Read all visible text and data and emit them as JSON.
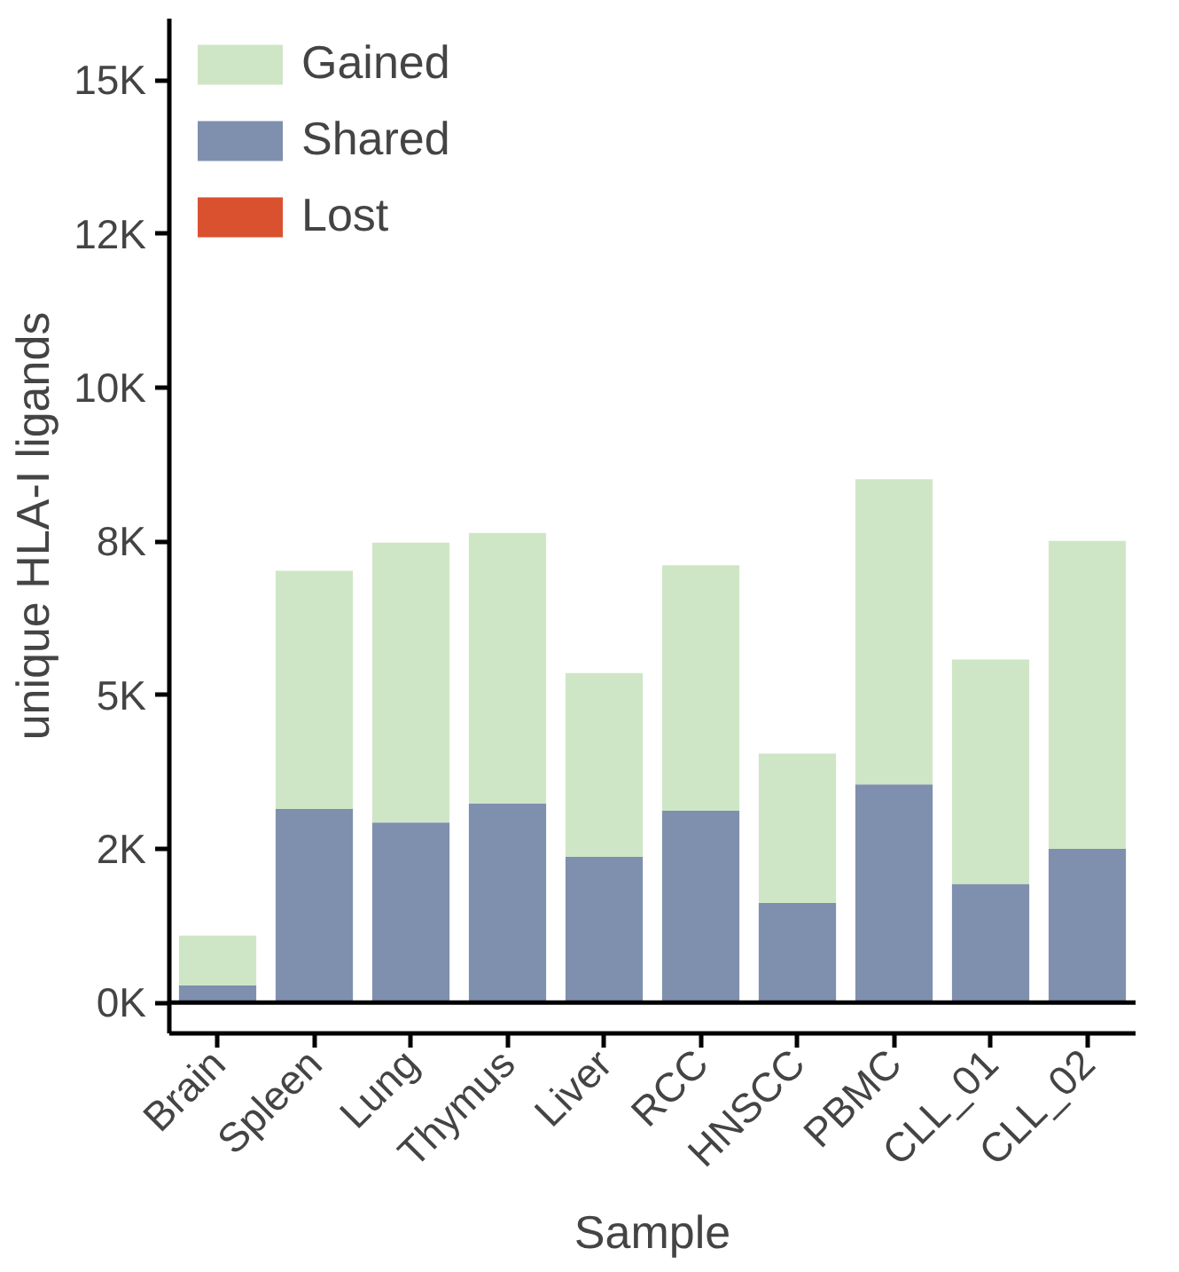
{
  "chart_data": {
    "type": "bar",
    "stacked": true,
    "xlabel": "Sample",
    "ylabel": "unique HLA-I ligands",
    "categories": [
      "Brain",
      "Spleen",
      "Lung",
      "Thymus",
      "Liver",
      "RCC",
      "HNSCC",
      "PBMC",
      "CLL_01",
      "CLL_02"
    ],
    "series": [
      {
        "name": "Lost",
        "color": "#d9512f",
        "values": [
          0,
          0,
          0,
          0,
          0,
          0,
          0,
          0,
          0,
          0
        ]
      },
      {
        "name": "Shared",
        "color": "#7f8fae",
        "values": [
          280,
          3150,
          2930,
          3240,
          2370,
          3120,
          1620,
          3550,
          1930,
          2500
        ]
      },
      {
        "name": "Gained",
        "color": "#cfe6c6",
        "values": [
          810,
          3870,
          4550,
          4400,
          2990,
          3990,
          2430,
          4960,
          3650,
          5010
        ]
      }
    ],
    "ylim": [
      -500,
      16000
    ],
    "yticks": [
      {
        "value": 0,
        "label": "0K"
      },
      {
        "value": 2500,
        "label": "2K"
      },
      {
        "value": 5000,
        "label": "5K"
      },
      {
        "value": 7500,
        "label": "8K"
      },
      {
        "value": 10000,
        "label": "10K"
      },
      {
        "value": 12500,
        "label": "12K"
      },
      {
        "value": 15000,
        "label": "15K"
      }
    ],
    "ref_lines": [
      {
        "axis": "y",
        "value": 0,
        "color": "#000000"
      }
    ],
    "legend": "top left",
    "grid": false
  }
}
